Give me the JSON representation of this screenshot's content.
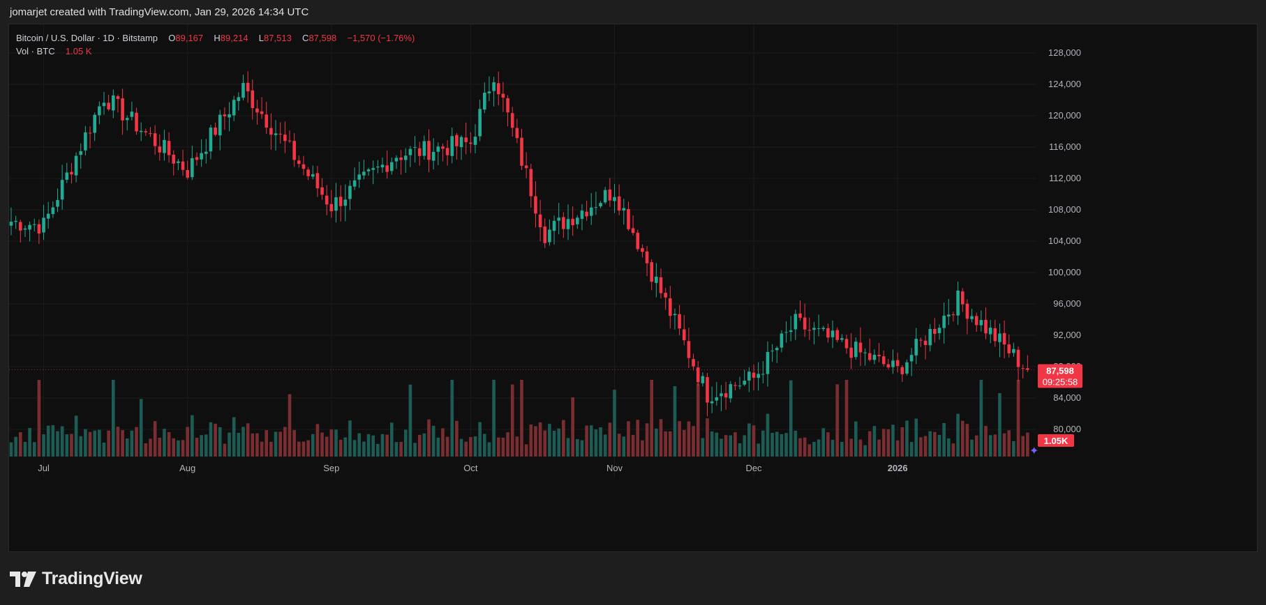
{
  "caption": "jomarjet created with TradingView.com, Jan 29, 2026 14:34 UTC",
  "legend": {
    "symbol": "Bitcoin / U.S. Dollar · 1D · Bitstamp",
    "open_label": "O",
    "open_value": "89,167",
    "high_label": "H",
    "high_value": "89,214",
    "low_label": "L",
    "low_value": "87,513",
    "close_label": "C",
    "close_value": "87,598",
    "change": "−1,570 (−1.76%)",
    "vol_label": "Vol · BTC",
    "vol_value": "1.05 K"
  },
  "price_label": {
    "price": "87,598",
    "countdown": "09:25:58"
  },
  "volume_label": "1.05K",
  "brand": "TradingView",
  "colors": {
    "up": "#22ab94",
    "down": "#f23645",
    "vol_up": "#1d5c55",
    "vol_down": "#7a2e31",
    "background": "#0f0f0f",
    "grid": "#1c1c1c"
  },
  "icons": {
    "logo": "tradingview-logo-icon",
    "magic": "sparkle-icon"
  },
  "chart_data": {
    "type": "candlestick",
    "symbol": "Bitcoin / U.S. Dollar",
    "interval": "1D",
    "exchange": "Bitstamp",
    "x_ticks": [
      "Jul",
      "Aug",
      "Sep",
      "Oct",
      "Nov",
      "Dec",
      "2026"
    ],
    "y_ticks": [
      80000,
      84000,
      88000,
      92000,
      96000,
      100000,
      104000,
      108000,
      112000,
      116000,
      120000,
      124000,
      128000
    ],
    "ylim": [
      76000,
      132000
    ],
    "current_price": 87598,
    "series": [
      {
        "name": "Bitcoin / U.S. Dollar",
        "monthly_key_levels": [
          {
            "date": "Jul 1",
            "value": 106000
          },
          {
            "date": "Jul 14",
            "value": 122500
          },
          {
            "date": "Aug 1",
            "value": 113000
          },
          {
            "date": "Aug 13",
            "value": 123500
          },
          {
            "date": "Sep 1",
            "value": 108500
          },
          {
            "date": "Sep 15",
            "value": 115000
          },
          {
            "date": "Oct 1",
            "value": 116500
          },
          {
            "date": "Oct 6",
            "value": 125500
          },
          {
            "date": "Oct 17",
            "value": 105000
          },
          {
            "date": "Nov 1",
            "value": 110500
          },
          {
            "date": "Nov 21",
            "value": 84500
          },
          {
            "date": "Dec 1",
            "value": 86500
          },
          {
            "date": "Dec 10",
            "value": 93500
          },
          {
            "date": "Jan 1",
            "value": 87500
          },
          {
            "date": "Jan 14",
            "value": 96500
          },
          {
            "date": "Jan 29",
            "value": 87598
          }
        ]
      }
    ]
  }
}
